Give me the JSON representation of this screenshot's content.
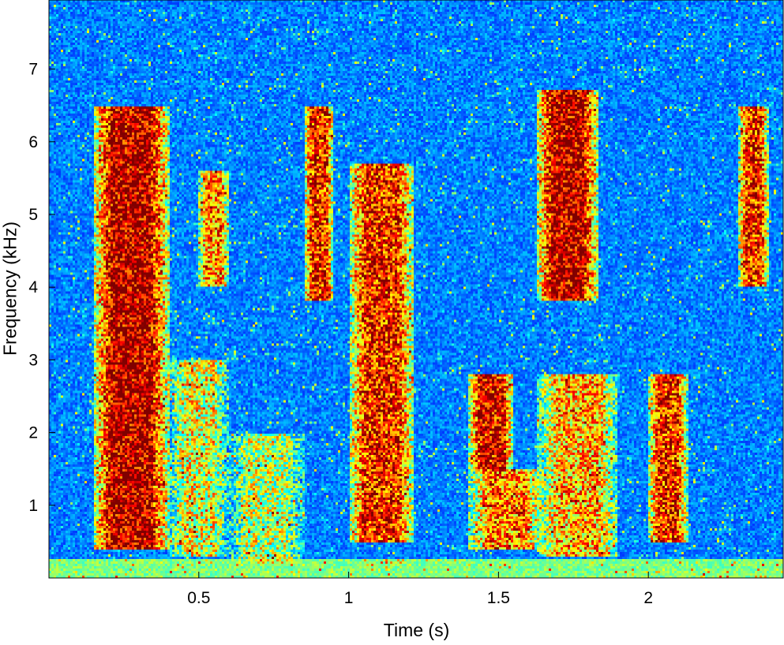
{
  "chart_data": {
    "type": "heatmap",
    "title": "",
    "xlabel": "Time (s)",
    "ylabel": "Frequency (kHz)",
    "xlim": [
      0.0,
      2.45
    ],
    "ylim": [
      0.0,
      7.95
    ],
    "xticks": [
      {
        "value": 0.5,
        "label": "0.5"
      },
      {
        "value": 1.0,
        "label": "1"
      },
      {
        "value": 1.5,
        "label": "1.5"
      },
      {
        "value": 2.0,
        "label": "2"
      }
    ],
    "yticks": [
      {
        "value": 1,
        "label": "1"
      },
      {
        "value": 2,
        "label": "2"
      },
      {
        "value": 3,
        "label": "3"
      },
      {
        "value": 4,
        "label": "4"
      },
      {
        "value": 5,
        "label": "5"
      },
      {
        "value": 6,
        "label": "6"
      },
      {
        "value": 7,
        "label": "7"
      }
    ],
    "colormap": "jet",
    "grid": false,
    "energy_regions": [
      {
        "t": [
          0.15,
          0.4
        ],
        "f": [
          0.4,
          6.5
        ],
        "level": 0.95
      },
      {
        "t": [
          0.4,
          0.6
        ],
        "f": [
          0.3,
          3.0
        ],
        "level": 0.6
      },
      {
        "t": [
          0.5,
          0.6
        ],
        "f": [
          4.0,
          5.6
        ],
        "level": 0.75
      },
      {
        "t": [
          0.6,
          0.85
        ],
        "f": [
          0.2,
          2.0
        ],
        "level": 0.55
      },
      {
        "t": [
          0.85,
          0.95
        ],
        "f": [
          3.8,
          6.5
        ],
        "level": 0.85
      },
      {
        "t": [
          1.0,
          1.22
        ],
        "f": [
          0.5,
          5.7
        ],
        "level": 0.85
      },
      {
        "t": [
          1.4,
          1.55
        ],
        "f": [
          1.5,
          2.8
        ],
        "level": 0.9
      },
      {
        "t": [
          1.4,
          1.65
        ],
        "f": [
          0.4,
          1.5
        ],
        "level": 0.75
      },
      {
        "t": [
          1.63,
          1.83
        ],
        "f": [
          3.8,
          6.7
        ],
        "level": 0.95
      },
      {
        "t": [
          1.63,
          1.9
        ],
        "f": [
          0.3,
          2.8
        ],
        "level": 0.7
      },
      {
        "t": [
          2.0,
          2.13
        ],
        "f": [
          0.5,
          2.8
        ],
        "level": 0.85
      },
      {
        "t": [
          2.3,
          2.4
        ],
        "f": [
          4.0,
          6.5
        ],
        "level": 0.85
      }
    ],
    "colors": {
      "low": "#0000ff",
      "mid": "#00ffff",
      "high": "#ff0000"
    }
  }
}
